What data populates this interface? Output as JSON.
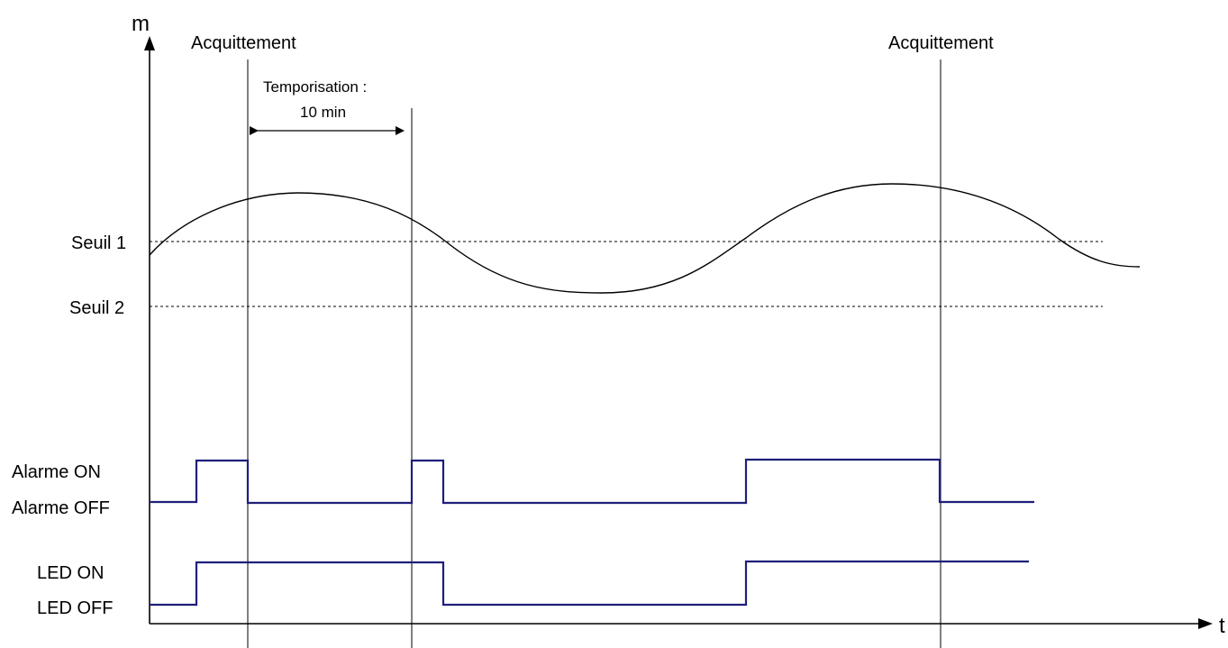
{
  "axes": {
    "y_label": "m",
    "x_label": "t"
  },
  "acknowledgements": [
    {
      "label": "Acquittement"
    },
    {
      "label": "Acquittement"
    }
  ],
  "timer": {
    "line1": "Temporisation :",
    "line2": "10 min"
  },
  "thresholds": [
    {
      "label": "Seuil 1"
    },
    {
      "label": "Seuil 2"
    }
  ],
  "alarm": {
    "on_label": "Alarme ON",
    "off_label": "Alarme OFF"
  },
  "led": {
    "on_label": "LED ON",
    "off_label": "LED OFF"
  },
  "colors": {
    "signal": "#1f1f7a",
    "lines": "#000000"
  }
}
